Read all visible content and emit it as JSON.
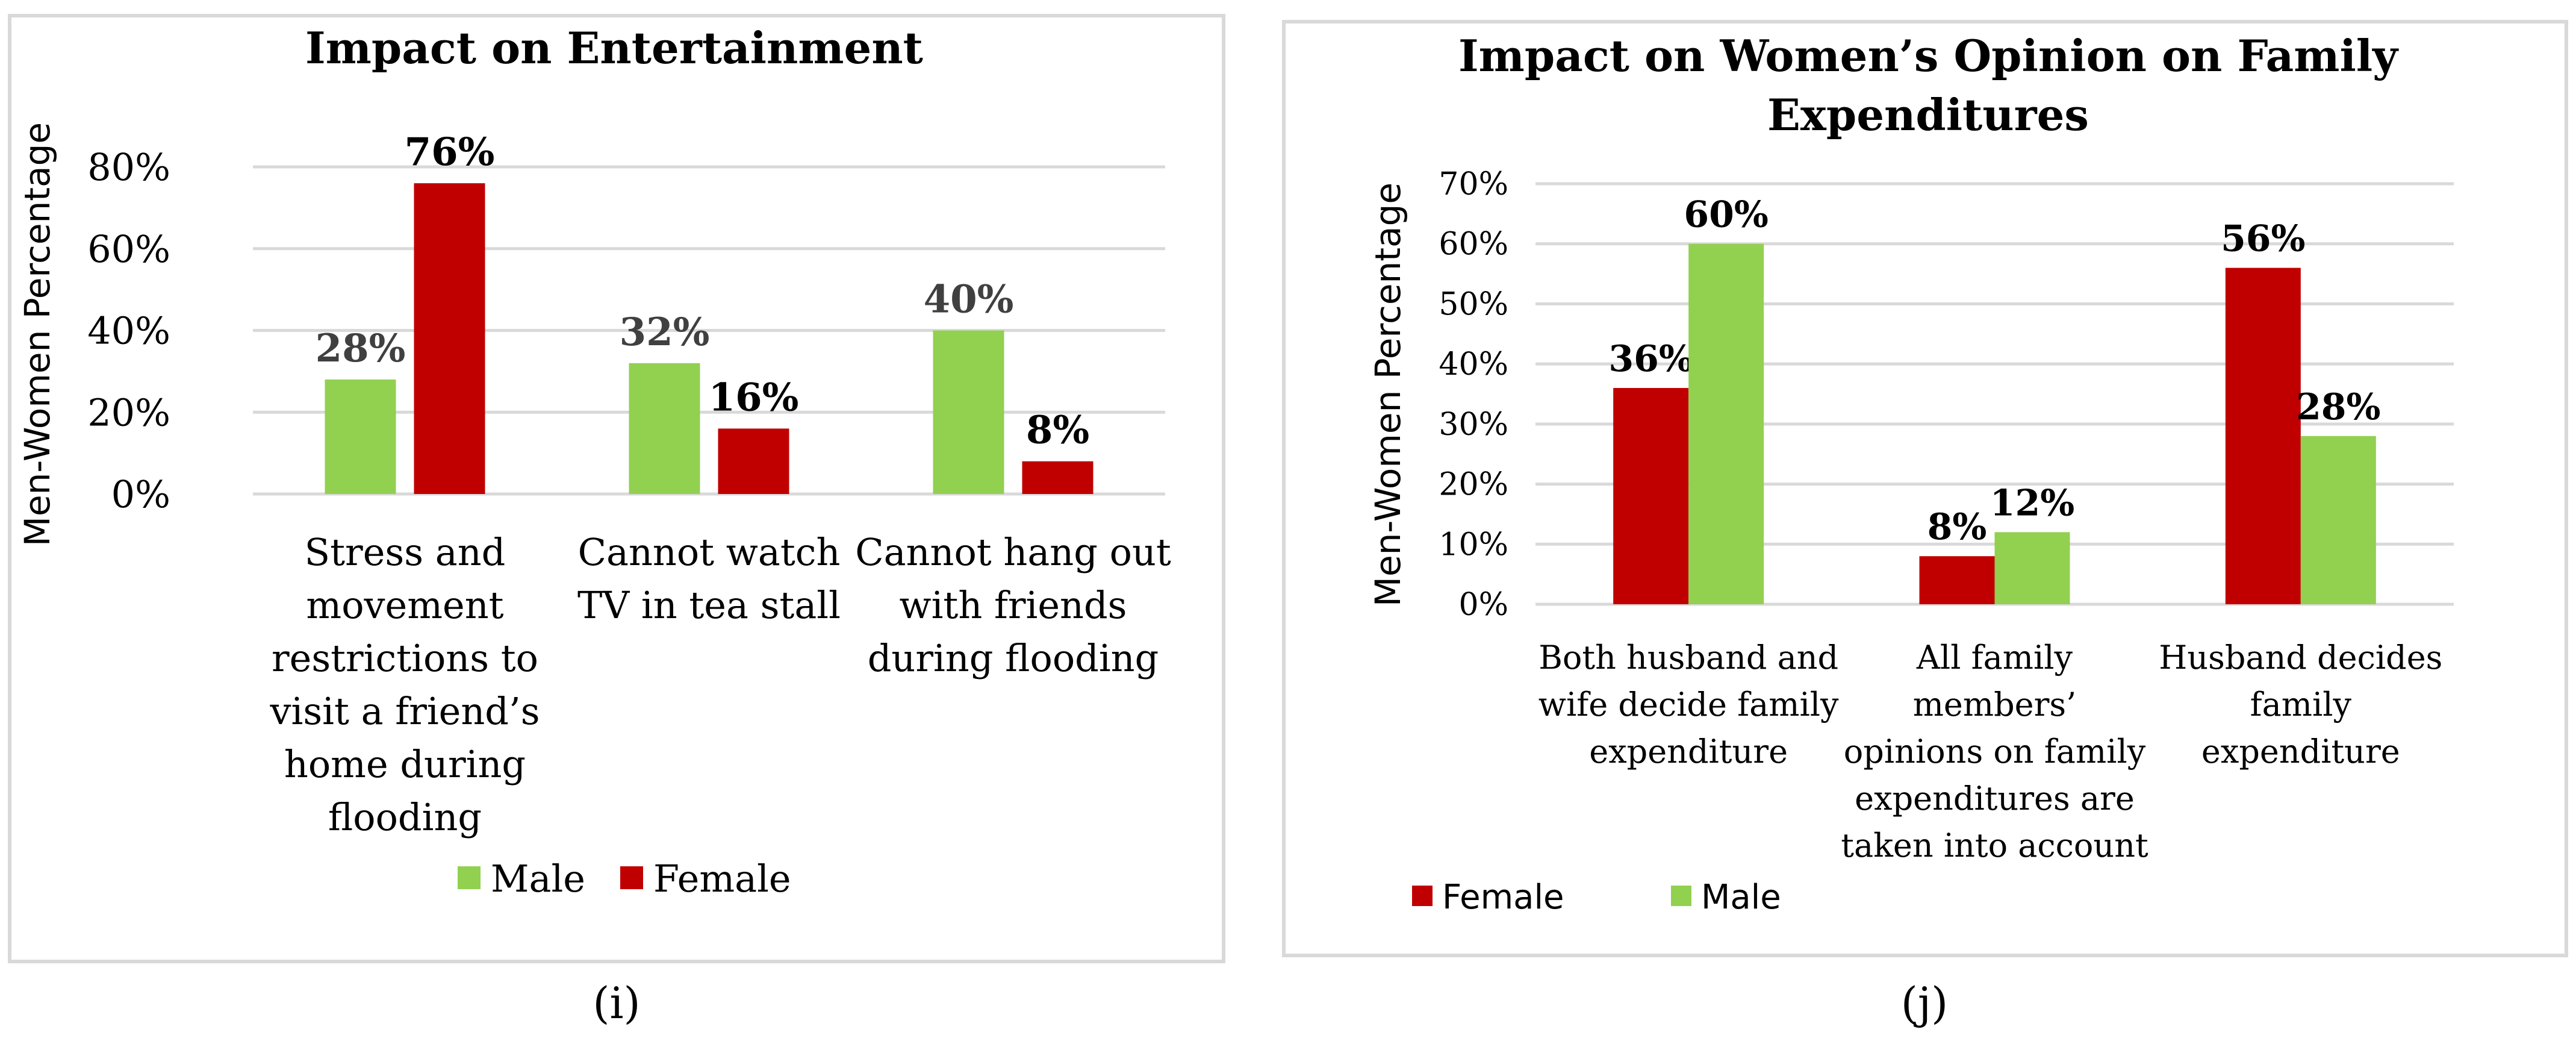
{
  "colors": {
    "male": "#92d050",
    "female": "#c00000",
    "male_label": "#404040",
    "female_label": "#000000"
  },
  "chart_data": [
    {
      "id": "i",
      "type": "bar",
      "title": "Impact on Entertainment",
      "ylabel": "Men-Women Percentage",
      "caption": "(i)",
      "ylim": [
        0,
        80
      ],
      "yticks": [
        "0%",
        "20%",
        "40%",
        "60%",
        "80%"
      ],
      "categories": [
        [
          "Stress and",
          "movement",
          "restrictions to",
          "visit a friend’s",
          "home during",
          "flooding"
        ],
        [
          "Cannot watch",
          "TV in tea stall"
        ],
        [
          "Cannot hang out",
          "with friends",
          "during flooding"
        ]
      ],
      "series": [
        {
          "name": "Male",
          "values": [
            28,
            32,
            40
          ],
          "labels": [
            "28%",
            "32%",
            "40%"
          ]
        },
        {
          "name": "Female",
          "values": [
            76,
            16,
            8
          ],
          "labels": [
            "76%",
            "16%",
            "8%"
          ]
        }
      ],
      "legend": [
        "Male",
        "Female"
      ]
    },
    {
      "id": "j",
      "type": "bar",
      "title": [
        "Impact on Women’s Opinion on Family",
        "Expenditures"
      ],
      "ylabel": "Men-Women Percentage",
      "caption": "(j)",
      "ylim": [
        0,
        70
      ],
      "yticks": [
        "0%",
        "10%",
        "20%",
        "30%",
        "40%",
        "50%",
        "60%",
        "70%"
      ],
      "categories": [
        [
          "Both husband and",
          "wife decide family",
          "expenditure"
        ],
        [
          "All family",
          "members’",
          "opinions on family",
          "expenditures are",
          "taken into account"
        ],
        [
          "Husband decides",
          "family",
          "expenditure"
        ]
      ],
      "series": [
        {
          "name": "Female",
          "values": [
            36,
            8,
            56
          ],
          "labels": [
            "36%",
            "8%",
            "56%"
          ]
        },
        {
          "name": "Male",
          "values": [
            60,
            12,
            28
          ],
          "labels": [
            "60%",
            "12%",
            "28%"
          ]
        }
      ],
      "legend": [
        "Female",
        "Male"
      ]
    }
  ]
}
